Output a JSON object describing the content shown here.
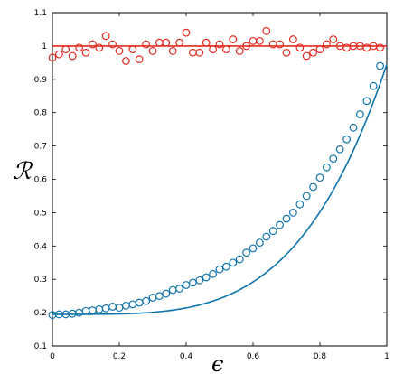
{
  "chart_data": {
    "type": "scatter",
    "xlabel": "ϵ",
    "ylabel": "ℛ",
    "xlim": [
      0,
      1
    ],
    "ylim": [
      0.1,
      1.1
    ],
    "x_ticks": [
      "0",
      "0.2",
      "0.4",
      "0.6",
      "0.8",
      "1"
    ],
    "y_ticks": [
      "0.1",
      "0.2",
      "0.3",
      "0.4",
      "0.5",
      "0.6",
      "0.7",
      "0.8",
      "0.9",
      "1",
      "1.1"
    ],
    "colors": {
      "red": "#e32b1f",
      "blue": "#0f74ad"
    },
    "series": [
      {
        "color": "red",
        "line": {
          "kind": "constant",
          "y": 1.0
        },
        "x": [
          0.0,
          0.02,
          0.04,
          0.06,
          0.08,
          0.1,
          0.12,
          0.14,
          0.16,
          0.18,
          0.2,
          0.22,
          0.24,
          0.26,
          0.28,
          0.3,
          0.32,
          0.34,
          0.36,
          0.38,
          0.4,
          0.42,
          0.44,
          0.46,
          0.48,
          0.5,
          0.52,
          0.54,
          0.56,
          0.58,
          0.6,
          0.62,
          0.64,
          0.66,
          0.68,
          0.7,
          0.72,
          0.74,
          0.76,
          0.78,
          0.8,
          0.82,
          0.84,
          0.86,
          0.88,
          0.9,
          0.92,
          0.94,
          0.96,
          0.98
        ],
        "y": [
          0.965,
          0.975,
          0.99,
          0.97,
          0.995,
          0.98,
          1.005,
          0.995,
          1.03,
          1.005,
          0.985,
          0.955,
          0.99,
          0.96,
          1.005,
          0.985,
          1.01,
          1.01,
          0.985,
          1.01,
          1.04,
          0.98,
          0.98,
          1.01,
          0.99,
          1.005,
          0.99,
          1.02,
          0.985,
          1.0,
          1.015,
          1.015,
          1.045,
          1.005,
          1.005,
          0.98,
          1.02,
          0.995,
          0.97,
          0.98,
          0.99,
          1.005,
          1.02,
          1.0,
          0.995,
          1.0,
          1.0,
          0.995,
          1.0,
          0.995
        ]
      },
      {
        "color": "blue",
        "line": {
          "kind": "curve",
          "a": 0.195,
          "b": 0.75,
          "p": 4
        },
        "x": [
          0.0,
          0.02,
          0.04,
          0.06,
          0.08,
          0.1,
          0.12,
          0.14,
          0.16,
          0.18,
          0.2,
          0.22,
          0.24,
          0.26,
          0.28,
          0.3,
          0.32,
          0.34,
          0.36,
          0.38,
          0.4,
          0.42,
          0.44,
          0.46,
          0.48,
          0.5,
          0.52,
          0.54,
          0.56,
          0.58,
          0.6,
          0.62,
          0.64,
          0.66,
          0.68,
          0.7,
          0.72,
          0.74,
          0.76,
          0.78,
          0.8,
          0.82,
          0.84,
          0.86,
          0.88,
          0.9,
          0.92,
          0.94,
          0.96,
          0.98
        ],
        "y": [
          0.193,
          0.195,
          0.195,
          0.197,
          0.2,
          0.205,
          0.207,
          0.21,
          0.213,
          0.218,
          0.215,
          0.221,
          0.225,
          0.23,
          0.235,
          0.245,
          0.25,
          0.257,
          0.268,
          0.272,
          0.283,
          0.29,
          0.297,
          0.306,
          0.316,
          0.33,
          0.338,
          0.35,
          0.36,
          0.38,
          0.393,
          0.41,
          0.428,
          0.445,
          0.463,
          0.482,
          0.5,
          0.525,
          0.55,
          0.577,
          0.605,
          0.636,
          0.662,
          0.69,
          0.72,
          0.755,
          0.795,
          0.835,
          0.88,
          0.94
        ]
      }
    ]
  }
}
